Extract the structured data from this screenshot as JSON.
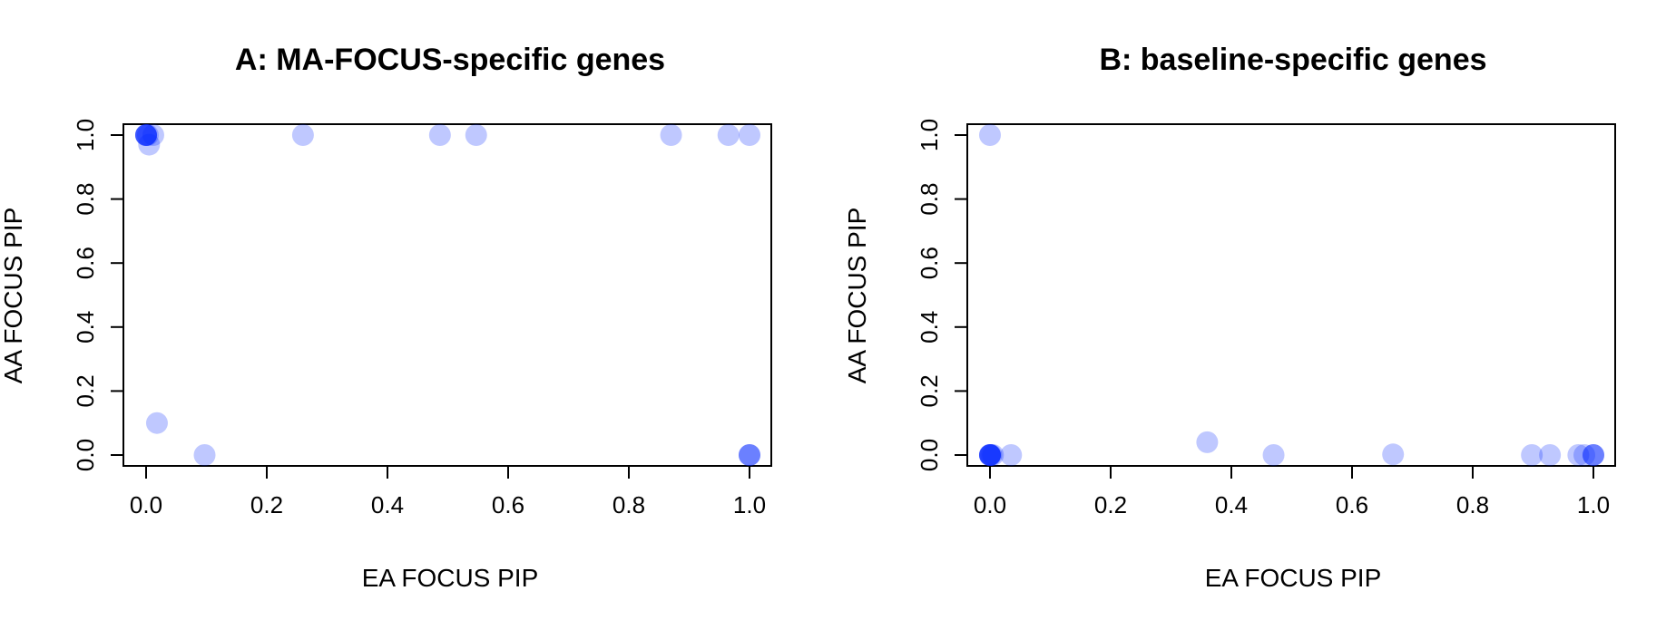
{
  "chart_data": [
    {
      "type": "scatter",
      "title": "A: MA-FOCUS-specific genes",
      "xlabel": "EA FOCUS PIP",
      "ylabel": "AA FOCUS PIP",
      "xlim": [
        0,
        1
      ],
      "ylim": [
        0,
        1
      ],
      "xticks": [
        "0.0",
        "0.2",
        "0.4",
        "0.6",
        "0.8",
        "1.0"
      ],
      "yticks": [
        "0.0",
        "0.2",
        "0.4",
        "0.6",
        "0.8",
        "1.0"
      ],
      "grid": false,
      "point_color": "#0022ff",
      "point_alpha": 0.25,
      "points": [
        {
          "x": 0.0,
          "y": 1.0
        },
        {
          "x": 0.0,
          "y": 1.0
        },
        {
          "x": 0.0,
          "y": 1.0
        },
        {
          "x": 0.0,
          "y": 1.0
        },
        {
          "x": 0.0,
          "y": 1.0
        },
        {
          "x": 0.003,
          "y": 1.0
        },
        {
          "x": 0.005,
          "y": 0.97
        },
        {
          "x": 0.012,
          "y": 1.0
        },
        {
          "x": 0.018,
          "y": 0.1
        },
        {
          "x": 0.097,
          "y": 0.0
        },
        {
          "x": 0.26,
          "y": 1.0
        },
        {
          "x": 0.487,
          "y": 1.0
        },
        {
          "x": 0.547,
          "y": 1.0
        },
        {
          "x": 0.87,
          "y": 1.0
        },
        {
          "x": 0.965,
          "y": 1.0
        },
        {
          "x": 1.0,
          "y": 1.0
        },
        {
          "x": 1.0,
          "y": 0.0
        },
        {
          "x": 1.0,
          "y": 0.0
        },
        {
          "x": 1.0,
          "y": 0.0
        }
      ]
    },
    {
      "type": "scatter",
      "title": "B: baseline-specific genes",
      "xlabel": "EA FOCUS PIP",
      "ylabel": "AA FOCUS PIP",
      "xlim": [
        0,
        1
      ],
      "ylim": [
        0,
        1
      ],
      "xticks": [
        "0.0",
        "0.2",
        "0.4",
        "0.6",
        "0.8",
        "1.0"
      ],
      "yticks": [
        "0.0",
        "0.2",
        "0.4",
        "0.6",
        "0.8",
        "1.0"
      ],
      "grid": false,
      "point_color": "#0022ff",
      "point_alpha": 0.25,
      "points": [
        {
          "x": 0.0,
          "y": 1.0
        },
        {
          "x": 0.0,
          "y": 0.0
        },
        {
          "x": 0.0,
          "y": 0.0
        },
        {
          "x": 0.0,
          "y": 0.0
        },
        {
          "x": 0.0,
          "y": 0.0
        },
        {
          "x": 0.0,
          "y": 0.0
        },
        {
          "x": 0.0,
          "y": 0.0
        },
        {
          "x": 0.002,
          "y": 0.0
        },
        {
          "x": 0.005,
          "y": 0.0
        },
        {
          "x": 0.035,
          "y": 0.0
        },
        {
          "x": 0.36,
          "y": 0.04
        },
        {
          "x": 0.47,
          "y": 0.0
        },
        {
          "x": 0.668,
          "y": 0.002
        },
        {
          "x": 0.898,
          "y": 0.0
        },
        {
          "x": 0.928,
          "y": 0.0
        },
        {
          "x": 0.975,
          "y": 0.0
        },
        {
          "x": 0.985,
          "y": 0.0
        },
        {
          "x": 1.0,
          "y": 0.0
        },
        {
          "x": 1.0,
          "y": 0.0
        },
        {
          "x": 1.0,
          "y": 0.0
        }
      ]
    }
  ]
}
